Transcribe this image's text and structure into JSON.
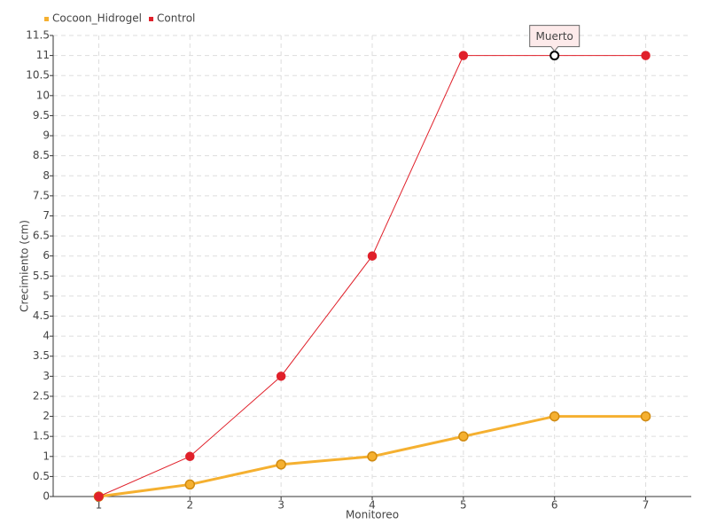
{
  "chart_data": {
    "type": "line",
    "x_label": "Monitoreo",
    "y_label": "Crecimiento (cm)",
    "categories": [
      "1",
      "2",
      "3",
      "4",
      "5",
      "6",
      "7"
    ],
    "series": [
      {
        "name": "Cocoon_Hidrogel",
        "color": "#f5b030",
        "values": [
          0,
          0.3,
          0.8,
          1,
          1.5,
          2,
          2
        ]
      },
      {
        "name": "Control",
        "color": "#e0202a",
        "values": [
          0,
          1,
          3,
          6,
          11,
          11,
          11
        ]
      }
    ],
    "ylim": [
      0,
      11.5
    ],
    "yticks": [
      0,
      0.5,
      1,
      1.5,
      2,
      2.5,
      3,
      3.5,
      4,
      4.5,
      5,
      5.5,
      6,
      6.5,
      7,
      7.5,
      8,
      8.5,
      9,
      9.5,
      10,
      10.5,
      11,
      11.5
    ],
    "grid": true,
    "annotation": {
      "text": "Muerto",
      "series": 1,
      "index": 5
    }
  }
}
